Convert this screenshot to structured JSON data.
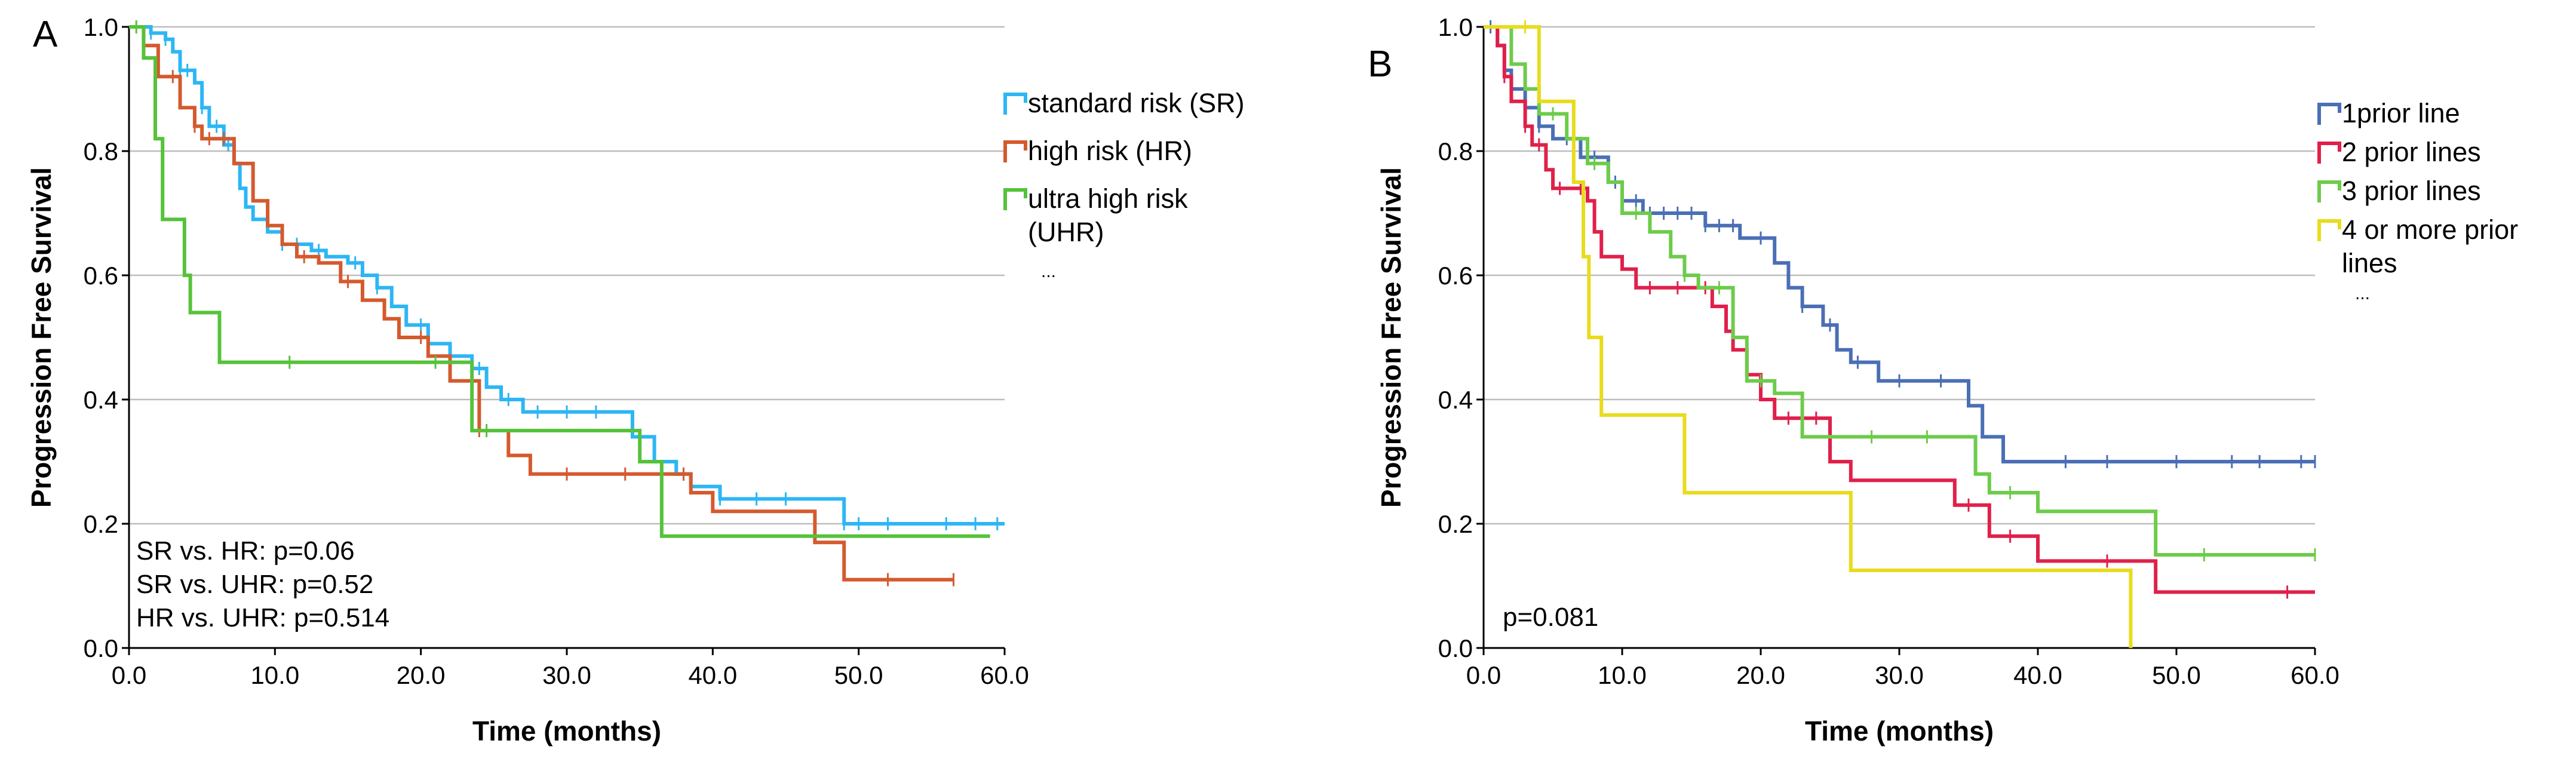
{
  "chart_data": [
    {
      "type": "line",
      "panel_label": "A",
      "xlabel": "Time (months)",
      "ylabel": "Progression Free Survival",
      "xlim": [
        0,
        60
      ],
      "ylim": [
        0,
        1.0
      ],
      "xticks": [
        "0.0",
        "10.0",
        "20.0",
        "30.0",
        "40.0",
        "50.0",
        "60.0"
      ],
      "yticks": [
        "0.0",
        "0.2",
        "0.4",
        "0.6",
        "0.8",
        "1.0"
      ],
      "grid": "horizontal",
      "legend_position": "right",
      "legend": [
        {
          "label": "standard risk (SR)",
          "lines": [
            "standard risk (SR)"
          ],
          "color": "#2db6f5"
        },
        {
          "label": "high risk (HR)",
          "lines": [
            "high risk (HR)"
          ],
          "color": "#d45a2e"
        },
        {
          "label": "ultra high risk (UHR)",
          "lines": [
            "ultra high risk",
            "(UHR)"
          ],
          "color": "#56c23a"
        }
      ],
      "legend_more": "...",
      "annotations": [
        "SR vs. HR: p=0.06",
        "SR vs. UHR: p=0.52",
        "HR vs. UHR: p=0.514"
      ],
      "series": [
        {
          "name": "standard risk (SR)",
          "color": "#2db6f5",
          "steps": [
            [
              0,
              1.0
            ],
            [
              1.5,
              0.99
            ],
            [
              2.5,
              0.98
            ],
            [
              3,
              0.96
            ],
            [
              3.5,
              0.93
            ],
            [
              4.5,
              0.91
            ],
            [
              5,
              0.87
            ],
            [
              5.5,
              0.84
            ],
            [
              6.5,
              0.81
            ],
            [
              7.2,
              0.78
            ],
            [
              7.6,
              0.74
            ],
            [
              8,
              0.71
            ],
            [
              8.5,
              0.69
            ],
            [
              9.5,
              0.67
            ],
            [
              10.5,
              0.65
            ],
            [
              12.5,
              0.64
            ],
            [
              13.5,
              0.63
            ],
            [
              15,
              0.62
            ],
            [
              16,
              0.6
            ],
            [
              17,
              0.58
            ],
            [
              18,
              0.55
            ],
            [
              19,
              0.52
            ],
            [
              20.5,
              0.49
            ],
            [
              22,
              0.47
            ],
            [
              23.5,
              0.45
            ],
            [
              24.5,
              0.42
            ],
            [
              25.5,
              0.4
            ],
            [
              27,
              0.38
            ],
            [
              34.5,
              0.34
            ],
            [
              36,
              0.3
            ],
            [
              37.5,
              0.28
            ],
            [
              38.5,
              0.26
            ],
            [
              40.5,
              0.24
            ],
            [
              49,
              0.2
            ],
            [
              60,
              0.2
            ]
          ],
          "censor_x": [
            1.5,
            2.5,
            3.5,
            4,
            5,
            6,
            6.8,
            10.5,
            11.5,
            13,
            15.5,
            17,
            20,
            22,
            24,
            26,
            28,
            30,
            32,
            38,
            40.5,
            43,
            45,
            49,
            50,
            52,
            56,
            58,
            59.5
          ]
        },
        {
          "name": "high risk (HR)",
          "color": "#d45a2e",
          "steps": [
            [
              0,
              1.0
            ],
            [
              1,
              0.97
            ],
            [
              2,
              0.92
            ],
            [
              3.5,
              0.87
            ],
            [
              4.5,
              0.84
            ],
            [
              5,
              0.82
            ],
            [
              6.5,
              0.82
            ],
            [
              7.2,
              0.78
            ],
            [
              8.5,
              0.72
            ],
            [
              9.5,
              0.68
            ],
            [
              10.5,
              0.65
            ],
            [
              11.5,
              0.63
            ],
            [
              13,
              0.62
            ],
            [
              14.5,
              0.59
            ],
            [
              16,
              0.56
            ],
            [
              17.5,
              0.53
            ],
            [
              18.5,
              0.5
            ],
            [
              20.5,
              0.47
            ],
            [
              22,
              0.43
            ],
            [
              24,
              0.35
            ],
            [
              26,
              0.31
            ],
            [
              27.5,
              0.28
            ],
            [
              38.5,
              0.25
            ],
            [
              40,
              0.22
            ],
            [
              47,
              0.17
            ],
            [
              49,
              0.11
            ],
            [
              56.5,
              0.11
            ]
          ],
          "censor_x": [
            1,
            3,
            4.5,
            5.5,
            6.5,
            12,
            15,
            20,
            24,
            30,
            34,
            38,
            52,
            56.5
          ]
        },
        {
          "name": "ultra high risk (UHR)",
          "color": "#56c23a",
          "steps": [
            [
              0,
              1.0
            ],
            [
              1,
              0.95
            ],
            [
              1.8,
              0.82
            ],
            [
              2.3,
              0.69
            ],
            [
              3.8,
              0.6
            ],
            [
              4.2,
              0.54
            ],
            [
              6.2,
              0.46
            ],
            [
              23.5,
              0.35
            ],
            [
              35,
              0.3
            ],
            [
              36.5,
              0.18
            ],
            [
              59,
              0.18
            ]
          ],
          "censor_x": [
            0.5,
            11,
            21,
            24.5
          ]
        }
      ]
    },
    {
      "type": "line",
      "panel_label": "B",
      "xlabel": "Time (months)",
      "ylabel": "Progression Free Survival",
      "xlim": [
        0,
        60
      ],
      "ylim": [
        0,
        1.0
      ],
      "xticks": [
        "0.0",
        "10.0",
        "20.0",
        "30.0",
        "40.0",
        "50.0",
        "60.0"
      ],
      "yticks": [
        "0.0",
        "0.2",
        "0.4",
        "0.6",
        "0.8",
        "1.0"
      ],
      "grid": "horizontal",
      "legend_position": "right",
      "legend": [
        {
          "label": "1prior line",
          "lines": [
            "1prior line"
          ],
          "color": "#4a6fb5"
        },
        {
          "label": "2 prior lines",
          "lines": [
            "2 prior lines"
          ],
          "color": "#e0204a"
        },
        {
          "label": "3 prior lines",
          "lines": [
            "3 prior lines"
          ],
          "color": "#6dcc4a"
        },
        {
          "label": "4 or more prior lines",
          "lines": [
            "4 or more prior",
            "lines"
          ],
          "color": "#e8dc1c"
        }
      ],
      "legend_more": "...",
      "annotations": [
        "p=0.081"
      ],
      "series": [
        {
          "name": "1prior line",
          "color": "#4a6fb5",
          "steps": [
            [
              0,
              1.0
            ],
            [
              1,
              0.97
            ],
            [
              1.5,
              0.93
            ],
            [
              2,
              0.9
            ],
            [
              3,
              0.87
            ],
            [
              4,
              0.84
            ],
            [
              5,
              0.82
            ],
            [
              7,
              0.79
            ],
            [
              9,
              0.75
            ],
            [
              10,
              0.72
            ],
            [
              11.5,
              0.7
            ],
            [
              16,
              0.68
            ],
            [
              18.5,
              0.66
            ],
            [
              21,
              0.62
            ],
            [
              22,
              0.58
            ],
            [
              23,
              0.55
            ],
            [
              24.5,
              0.52
            ],
            [
              25.5,
              0.48
            ],
            [
              26.5,
              0.46
            ],
            [
              28.5,
              0.43
            ],
            [
              35,
              0.39
            ],
            [
              36,
              0.34
            ],
            [
              37.5,
              0.3
            ],
            [
              60,
              0.3
            ]
          ],
          "censor_x": [
            0.5,
            1.5,
            3,
            4,
            6,
            8,
            9.5,
            11,
            12,
            13,
            14,
            15,
            16,
            17,
            18,
            20,
            23,
            25,
            27,
            30,
            33,
            42,
            45,
            50,
            54,
            56,
            59,
            60
          ]
        },
        {
          "name": "2 prior lines",
          "color": "#e0204a",
          "steps": [
            [
              0,
              1.0
            ],
            [
              1,
              0.97
            ],
            [
              1.5,
              0.92
            ],
            [
              2,
              0.88
            ],
            [
              3,
              0.84
            ],
            [
              3.5,
              0.81
            ],
            [
              4.5,
              0.77
            ],
            [
              5,
              0.74
            ],
            [
              7.5,
              0.72
            ],
            [
              8,
              0.67
            ],
            [
              8.5,
              0.63
            ],
            [
              10,
              0.61
            ],
            [
              11,
              0.58
            ],
            [
              13.5,
              0.58
            ],
            [
              16.5,
              0.55
            ],
            [
              17.5,
              0.51
            ],
            [
              18,
              0.48
            ],
            [
              19,
              0.44
            ],
            [
              20,
              0.4
            ],
            [
              21,
              0.37
            ],
            [
              25,
              0.3
            ],
            [
              26.5,
              0.27
            ],
            [
              34,
              0.23
            ],
            [
              36.5,
              0.18
            ],
            [
              40,
              0.14
            ],
            [
              48.5,
              0.09
            ],
            [
              60,
              0.09
            ]
          ],
          "censor_x": [
            1.5,
            3,
            4,
            5.5,
            7,
            12,
            14,
            16,
            22,
            24,
            35,
            38,
            45,
            58
          ]
        },
        {
          "name": "3 prior lines",
          "color": "#6dcc4a",
          "steps": [
            [
              0,
              1.0
            ],
            [
              2,
              0.94
            ],
            [
              3,
              0.9
            ],
            [
              4,
              0.86
            ],
            [
              6,
              0.82
            ],
            [
              7.5,
              0.78
            ],
            [
              9,
              0.75
            ],
            [
              10,
              0.7
            ],
            [
              12,
              0.67
            ],
            [
              13.5,
              0.63
            ],
            [
              14.5,
              0.6
            ],
            [
              15.5,
              0.58
            ],
            [
              18,
              0.5
            ],
            [
              19,
              0.43
            ],
            [
              21,
              0.41
            ],
            [
              23,
              0.34
            ],
            [
              35.5,
              0.28
            ],
            [
              36.5,
              0.25
            ],
            [
              40,
              0.22
            ],
            [
              48.5,
              0.15
            ],
            [
              60,
              0.15
            ]
          ],
          "censor_x": [
            5,
            8,
            11,
            14.5,
            17,
            20,
            28,
            32,
            38,
            52,
            60
          ]
        },
        {
          "name": "4 or more prior lines",
          "color": "#e8dc1c",
          "steps": [
            [
              0,
              1.0
            ],
            [
              4,
              0.88
            ],
            [
              6.5,
              0.75
            ],
            [
              7.2,
              0.63
            ],
            [
              7.6,
              0.5
            ],
            [
              8.5,
              0.375
            ],
            [
              14.5,
              0.25
            ],
            [
              26.5,
              0.125
            ],
            [
              46.5,
              0.125
            ],
            [
              46.7,
              0.0
            ]
          ],
          "censor_x": [
            3
          ]
        }
      ]
    }
  ]
}
